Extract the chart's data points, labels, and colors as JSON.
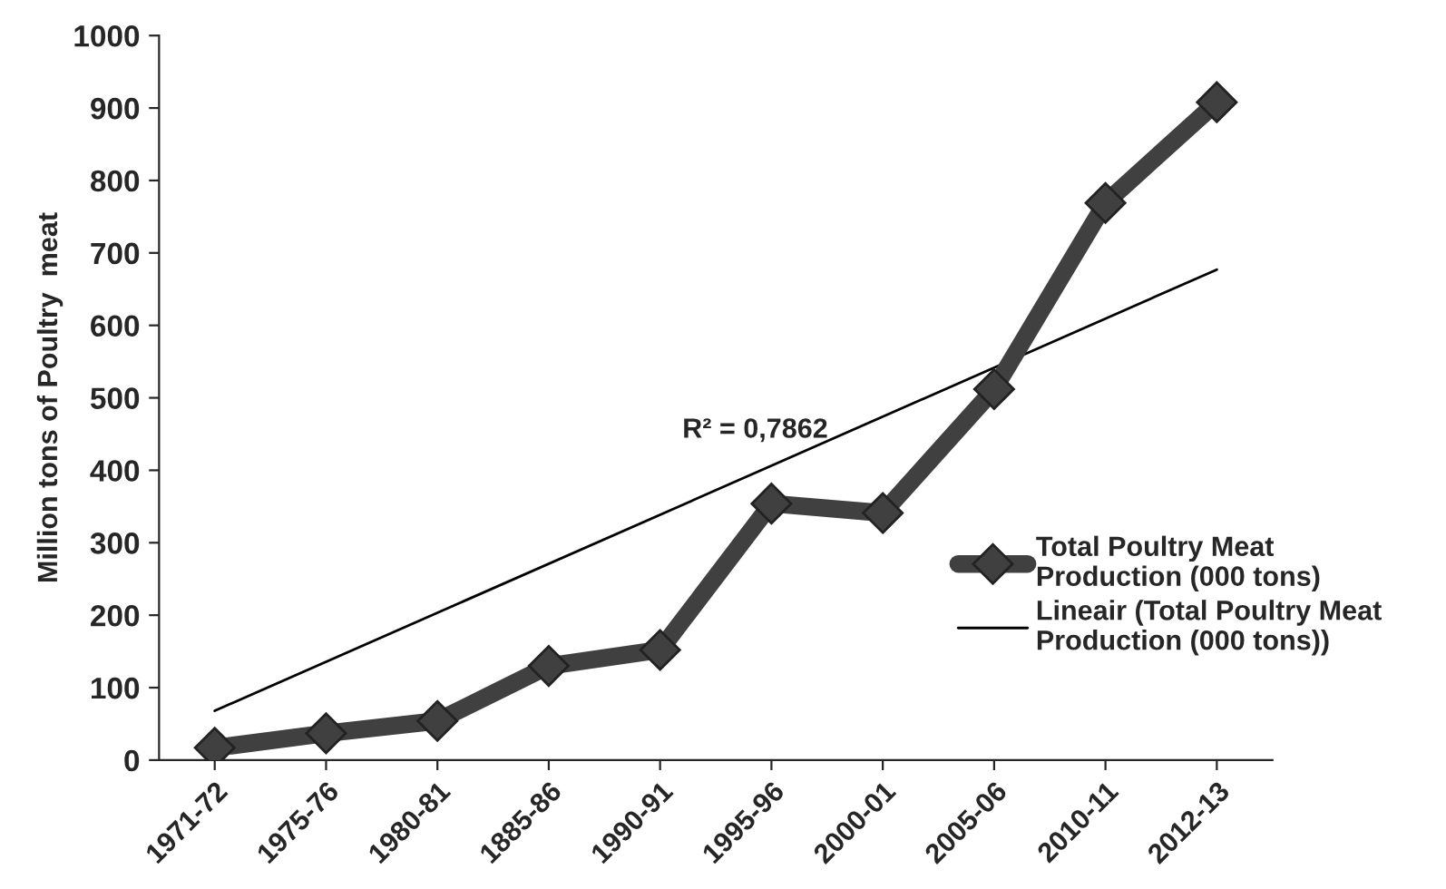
{
  "chart_data": {
    "type": "line",
    "ylabel": "Million tons of Poultry  meat",
    "categories": [
      "1971-72",
      "1975-76",
      "1980-81",
      "1885-86",
      "1990-91",
      "1995-96",
      "2000-01",
      "2005-06",
      "2010-11",
      "2012-13"
    ],
    "series": [
      {
        "name": "Total Poultry Meat Production (000 tons)",
        "color": "#404040",
        "marker": "diamond",
        "values": [
          17,
          37,
          54,
          130,
          152,
          354,
          341,
          512,
          769,
          908
        ]
      },
      {
        "name": "Lineair (Total Poultry Meat Production (000 tons))",
        "color": "#000000",
        "type": "line",
        "marker": "none",
        "x": [
          "1971-72",
          "2012-13"
        ],
        "values": [
          68,
          677
        ]
      }
    ],
    "ylim": [
      0,
      1000
    ],
    "yticks": [
      0,
      100,
      200,
      300,
      400,
      500,
      600,
      700,
      800,
      900,
      1000
    ],
    "annotations": [
      "R² = 0,7862"
    ],
    "legend": "right",
    "grid": false
  }
}
